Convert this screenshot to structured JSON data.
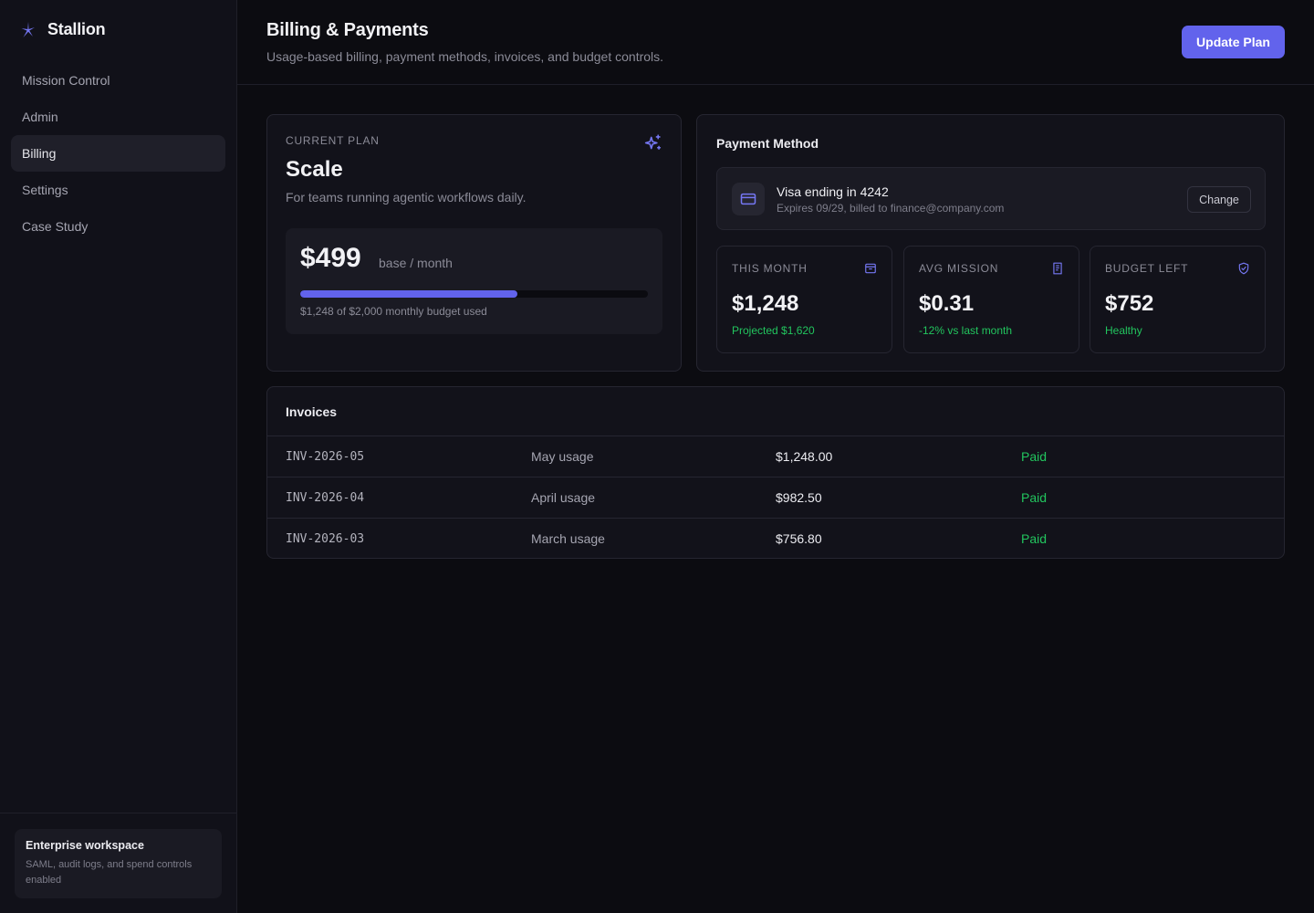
{
  "app": {
    "name": "Stallion"
  },
  "sidebar": {
    "items": [
      {
        "label": "Mission Control",
        "active": false
      },
      {
        "label": "Admin",
        "active": false
      },
      {
        "label": "Billing",
        "active": true
      },
      {
        "label": "Settings",
        "active": false
      },
      {
        "label": "Case Study",
        "active": false
      }
    ],
    "workspace": {
      "title": "Enterprise workspace",
      "description": "SAML, audit logs, and spend controls enabled"
    }
  },
  "header": {
    "title": "Billing & Payments",
    "subtitle": "Usage-based billing, payment methods, invoices, and budget controls.",
    "primary_button": "Update Plan"
  },
  "plan": {
    "label": "Current Plan",
    "name": "Scale",
    "description": "For teams running agentic workflows daily.",
    "price": "$499",
    "price_unit": "base / month",
    "budget_used_fraction": 0.624,
    "budget_text": "$1,248 of $2,000 monthly budget used",
    "icon": "sparkles-icon"
  },
  "payment": {
    "title": "Payment Method",
    "card_title": "Visa ending in 4242",
    "card_subtitle": "Expires 09/29, billed to finance@company.com",
    "change_label": "Change",
    "stats": [
      {
        "label": "This Month",
        "value": "$1,248",
        "note": "Projected $1,620",
        "icon": "archive-icon"
      },
      {
        "label": "Avg Mission",
        "value": "$0.31",
        "note": "-12% vs last month",
        "icon": "receipt-icon"
      },
      {
        "label": "Budget Left",
        "value": "$752",
        "note": "Healthy",
        "icon": "shield-check-icon"
      }
    ]
  },
  "invoices": {
    "title": "Invoices",
    "rows": [
      {
        "id": "INV-2026-05",
        "description": "May usage",
        "amount": "$1,248.00",
        "status": "Paid"
      },
      {
        "id": "INV-2026-04",
        "description": "April usage",
        "amount": "$982.50",
        "status": "Paid"
      },
      {
        "id": "INV-2026-03",
        "description": "March usage",
        "amount": "$756.80",
        "status": "Paid"
      }
    ]
  },
  "colors": {
    "accent": "#6263ec",
    "success": "#22c55e",
    "background": "#0c0c11",
    "sidebar": "#111119"
  }
}
